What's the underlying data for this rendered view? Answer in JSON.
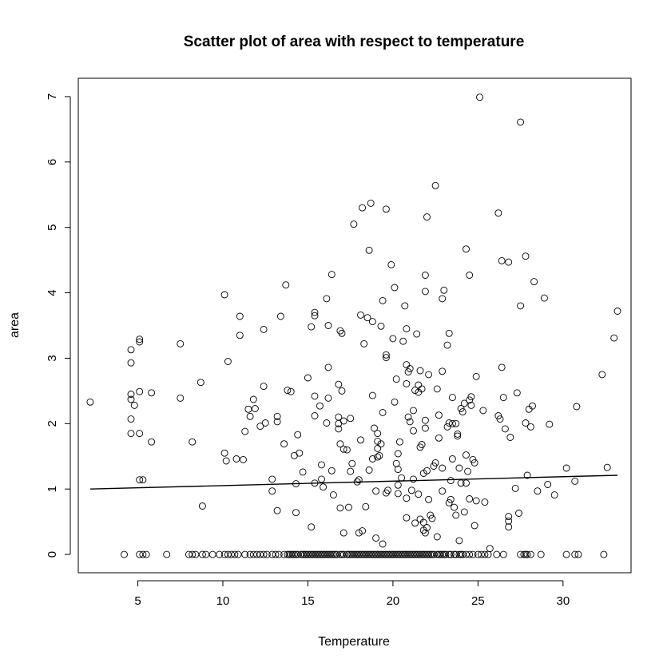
{
  "chart_data": {
    "type": "scatter",
    "title": "Scatter plot of area with respect to temperature",
    "xlabel": "Temperature",
    "ylabel": "area",
    "xlim": [
      1.5,
      34.0
    ],
    "ylim": [
      -0.28,
      7.28
    ],
    "xticks": [
      5,
      10,
      15,
      20,
      25,
      30
    ],
    "yticks": [
      0,
      1,
      2,
      3,
      4,
      5,
      6,
      7
    ],
    "grid": false,
    "colors": {
      "points": "#000000",
      "line": "#000000",
      "background": "#ffffff"
    },
    "points": [
      [
        2.2,
        2.33
      ],
      [
        4.6,
        3.13
      ],
      [
        4.6,
        2.93
      ],
      [
        4.6,
        2.45
      ],
      [
        4.6,
        2.37
      ],
      [
        4.6,
        2.07
      ],
      [
        4.6,
        1.85
      ],
      [
        4.8,
        2.28
      ],
      [
        5.1,
        3.29
      ],
      [
        5.1,
        3.25
      ],
      [
        5.1,
        2.49
      ],
      [
        5.1,
        1.85
      ],
      [
        5.1,
        1.14
      ],
      [
        5.3,
        1.14
      ],
      [
        5.8,
        2.47
      ],
      [
        5.8,
        1.72
      ],
      [
        7.5,
        3.22
      ],
      [
        7.5,
        2.39
      ],
      [
        8.2,
        1.72
      ],
      [
        8.7,
        2.63
      ],
      [
        8.8,
        0.74
      ],
      [
        10.1,
        3.97
      ],
      [
        10.1,
        1.55
      ],
      [
        10.2,
        1.43
      ],
      [
        10.3,
        2.95
      ],
      [
        10.8,
        1.46
      ],
      [
        11.0,
        3.64
      ],
      [
        11.0,
        3.35
      ],
      [
        11.2,
        1.45
      ],
      [
        11.3,
        1.88
      ],
      [
        11.5,
        2.22
      ],
      [
        11.6,
        2.11
      ],
      [
        11.8,
        2.37
      ],
      [
        11.9,
        2.23
      ],
      [
        12.2,
        1.96
      ],
      [
        12.4,
        3.44
      ],
      [
        12.4,
        2.57
      ],
      [
        12.5,
        2.01
      ],
      [
        12.9,
        1.15
      ],
      [
        12.9,
        0.97
      ],
      [
        13.2,
        2.11
      ],
      [
        13.2,
        2.03
      ],
      [
        13.2,
        0.67
      ],
      [
        13.4,
        3.64
      ],
      [
        13.6,
        1.69
      ],
      [
        13.7,
        4.12
      ],
      [
        13.8,
        2.51
      ],
      [
        14.0,
        2.49
      ],
      [
        14.2,
        1.51
      ],
      [
        14.3,
        1.08
      ],
      [
        14.3,
        0.64
      ],
      [
        14.4,
        1.83
      ],
      [
        14.5,
        1.55
      ],
      [
        14.7,
        1.26
      ],
      [
        15.0,
        2.7
      ],
      [
        15.2,
        3.48
      ],
      [
        15.2,
        0.42
      ],
      [
        15.4,
        3.7
      ],
      [
        15.4,
        3.65
      ],
      [
        15.4,
        2.42
      ],
      [
        15.4,
        2.12
      ],
      [
        15.4,
        1.09
      ],
      [
        15.7,
        2.27
      ],
      [
        15.8,
        1.37
      ],
      [
        15.8,
        1.15
      ],
      [
        15.9,
        1.03
      ],
      [
        16.1,
        3.91
      ],
      [
        16.1,
        2.01
      ],
      [
        16.2,
        3.5
      ],
      [
        16.2,
        2.86
      ],
      [
        16.2,
        2.39
      ],
      [
        16.4,
        4.28
      ],
      [
        16.4,
        1.28
      ],
      [
        16.5,
        0.91
      ],
      [
        16.8,
        2.6
      ],
      [
        16.8,
        2.1
      ],
      [
        16.8,
        2.0
      ],
      [
        16.8,
        1.92
      ],
      [
        16.9,
        3.42
      ],
      [
        16.9,
        1.69
      ],
      [
        16.9,
        0.71
      ],
      [
        17.0,
        3.38
      ],
      [
        17.0,
        2.5
      ],
      [
        17.1,
        2.04
      ],
      [
        17.1,
        1.61
      ],
      [
        17.1,
        0.33
      ],
      [
        17.3,
        1.6
      ],
      [
        17.4,
        0.72
      ],
      [
        17.5,
        2.08
      ],
      [
        17.5,
        1.27
      ],
      [
        17.6,
        1.39
      ],
      [
        17.7,
        5.05
      ],
      [
        17.9,
        1.11
      ],
      [
        18.0,
        1.14
      ],
      [
        18.0,
        0.33
      ],
      [
        18.1,
        3.66
      ],
      [
        18.1,
        1.75
      ],
      [
        18.2,
        5.3
      ],
      [
        18.2,
        0.36
      ],
      [
        18.3,
        3.22
      ],
      [
        18.4,
        0.73
      ],
      [
        18.5,
        3.62
      ],
      [
        18.6,
        4.65
      ],
      [
        18.6,
        1.29
      ],
      [
        18.7,
        5.37
      ],
      [
        18.8,
        3.56
      ],
      [
        18.8,
        2.43
      ],
      [
        18.8,
        1.46
      ],
      [
        18.9,
        1.93
      ],
      [
        19.0,
        0.97
      ],
      [
        19.0,
        0.25
      ],
      [
        19.1,
        1.85
      ],
      [
        19.1,
        1.73
      ],
      [
        19.1,
        1.62
      ],
      [
        19.1,
        1.49
      ],
      [
        19.2,
        1.51
      ],
      [
        19.3,
        3.49
      ],
      [
        19.3,
        1.69
      ],
      [
        19.4,
        3.88
      ],
      [
        19.4,
        2.17
      ],
      [
        19.4,
        0.16
      ],
      [
        19.6,
        5.28
      ],
      [
        19.6,
        3.05
      ],
      [
        19.6,
        3.01
      ],
      [
        19.6,
        0.94
      ],
      [
        19.7,
        0.98
      ],
      [
        19.9,
        4.43
      ],
      [
        20.0,
        3.3
      ],
      [
        20.1,
        4.08
      ],
      [
        20.1,
        2.33
      ],
      [
        20.2,
        2.68
      ],
      [
        20.2,
        1.39
      ],
      [
        20.3,
        1.54
      ],
      [
        20.3,
        1.3
      ],
      [
        20.3,
        1.06
      ],
      [
        20.3,
        0.93
      ],
      [
        20.4,
        1.72
      ],
      [
        20.5,
        1.17
      ],
      [
        20.6,
        3.26
      ],
      [
        20.7,
        3.8
      ],
      [
        20.8,
        3.45
      ],
      [
        20.8,
        2.9
      ],
      [
        20.8,
        2.61
      ],
      [
        20.8,
        0.86
      ],
      [
        20.8,
        0.56
      ],
      [
        20.9,
        2.79
      ],
      [
        20.9,
        2.1
      ],
      [
        21.0,
        2.84
      ],
      [
        21.0,
        2.03
      ],
      [
        21.1,
        0.98
      ],
      [
        21.2,
        2.2
      ],
      [
        21.2,
        1.89
      ],
      [
        21.2,
        1.15
      ],
      [
        21.3,
        2.51
      ],
      [
        21.3,
        0.48
      ],
      [
        21.4,
        3.37
      ],
      [
        21.5,
        2.59
      ],
      [
        21.5,
        2.48
      ],
      [
        21.5,
        0.92
      ],
      [
        21.6,
        2.81
      ],
      [
        21.6,
        1.64
      ],
      [
        21.6,
        0.54
      ],
      [
        21.7,
        2.53
      ],
      [
        21.7,
        1.68
      ],
      [
        21.8,
        1.24
      ],
      [
        21.8,
        0.49
      ],
      [
        21.8,
        0.37
      ],
      [
        21.9,
        4.27
      ],
      [
        21.9,
        4.02
      ],
      [
        21.9,
        2.05
      ],
      [
        21.9,
        1.93
      ],
      [
        21.9,
        0.33
      ],
      [
        22.0,
        5.16
      ],
      [
        22.0,
        1.28
      ],
      [
        22.0,
        0.41
      ],
      [
        22.1,
        2.75
      ],
      [
        22.1,
        0.84
      ],
      [
        22.2,
        0.6
      ],
      [
        22.3,
        0.55
      ],
      [
        22.4,
        1.35
      ],
      [
        22.5,
        5.64
      ],
      [
        22.5,
        1.4
      ],
      [
        22.6,
        2.53
      ],
      [
        22.6,
        0.27
      ],
      [
        22.7,
        2.13
      ],
      [
        22.7,
        1.78
      ],
      [
        22.9,
        3.91
      ],
      [
        22.9,
        2.8
      ],
      [
        22.9,
        1.32
      ],
      [
        22.9,
        0.97
      ],
      [
        23.0,
        4.04
      ],
      [
        23.2,
        3.2
      ],
      [
        23.2,
        1.95
      ],
      [
        23.3,
        3.38
      ],
      [
        23.3,
        2.01
      ],
      [
        23.3,
        0.79
      ],
      [
        23.4,
        1.13
      ],
      [
        23.4,
        0.84
      ],
      [
        23.5,
        2.4
      ],
      [
        23.5,
        2.0
      ],
      [
        23.5,
        1.46
      ],
      [
        23.6,
        0.72
      ],
      [
        23.7,
        2.0
      ],
      [
        23.7,
        0.6
      ],
      [
        23.8,
        1.84
      ],
      [
        23.8,
        1.81
      ],
      [
        23.9,
        1.32
      ],
      [
        23.9,
        0.21
      ],
      [
        24.0,
        2.23
      ],
      [
        24.0,
        1.09
      ],
      [
        24.1,
        2.18
      ],
      [
        24.2,
        2.31
      ],
      [
        24.2,
        0.65
      ],
      [
        24.3,
        4.67
      ],
      [
        24.3,
        1.52
      ],
      [
        24.3,
        1.09
      ],
      [
        24.4,
        1.27
      ],
      [
        24.5,
        4.27
      ],
      [
        24.5,
        2.36
      ],
      [
        24.5,
        0.85
      ],
      [
        24.6,
        2.41
      ],
      [
        24.6,
        2.28
      ],
      [
        24.7,
        1.45
      ],
      [
        24.8,
        1.4
      ],
      [
        24.8,
        0.44
      ],
      [
        24.9,
        2.72
      ],
      [
        24.9,
        0.82
      ],
      [
        25.1,
        6.99
      ],
      [
        25.3,
        2.2
      ],
      [
        25.4,
        0.8
      ],
      [
        25.7,
        0.09
      ],
      [
        26.2,
        5.22
      ],
      [
        26.2,
        2.12
      ],
      [
        26.3,
        2.07
      ],
      [
        26.4,
        4.49
      ],
      [
        26.4,
        2.86
      ],
      [
        26.5,
        2.4
      ],
      [
        26.6,
        1.92
      ],
      [
        26.8,
        0.58
      ],
      [
        26.8,
        0.51
      ],
      [
        26.8,
        0.42
      ],
      [
        26.8,
        4.47
      ],
      [
        26.9,
        1.79
      ],
      [
        27.2,
        1.01
      ],
      [
        27.3,
        2.47
      ],
      [
        27.4,
        0.63
      ],
      [
        27.5,
        6.61
      ],
      [
        27.5,
        3.8
      ],
      [
        27.8,
        4.56
      ],
      [
        27.8,
        2.01
      ],
      [
        27.9,
        1.21
      ],
      [
        28.0,
        2.22
      ],
      [
        28.1,
        1.95
      ],
      [
        28.2,
        2.27
      ],
      [
        28.3,
        4.17
      ],
      [
        28.5,
        0.97
      ],
      [
        28.9,
        3.92
      ],
      [
        29.1,
        1.07
      ],
      [
        29.2,
        1.99
      ],
      [
        29.5,
        0.91
      ],
      [
        30.2,
        1.32
      ],
      [
        30.7,
        1.12
      ],
      [
        30.8,
        2.26
      ],
      [
        32.3,
        2.75
      ],
      [
        32.6,
        1.33
      ],
      [
        33.0,
        3.31
      ],
      [
        33.2,
        3.72
      ]
    ],
    "zero_x": [
      4.2,
      5.1,
      5.3,
      5.5,
      6.7,
      8.0,
      8.2,
      8.4,
      8.8,
      9.0,
      9.4,
      9.8,
      10.1,
      10.3,
      10.5,
      10.7,
      10.9,
      11.3,
      11.6,
      11.8,
      12.0,
      12.2,
      12.4,
      12.6,
      12.9,
      13.1,
      13.3,
      13.6,
      13.8,
      13.9,
      14.0,
      14.1,
      14.2,
      14.3,
      14.4,
      14.6,
      14.7,
      14.8,
      14.9,
      15.0,
      15.1,
      15.2,
      15.3,
      15.4,
      15.5,
      15.6,
      15.7,
      15.8,
      15.9,
      16.0,
      16.1,
      16.2,
      16.3,
      16.4,
      16.5,
      16.6,
      16.7,
      16.9,
      17.0,
      17.1,
      17.3,
      17.4,
      17.5,
      17.6,
      17.7,
      17.8,
      17.9,
      18.0,
      18.1,
      18.2,
      18.3,
      18.4,
      18.5,
      18.6,
      18.7,
      18.8,
      18.9,
      19.0,
      19.1,
      19.2,
      19.3,
      19.4,
      19.5,
      19.6,
      19.7,
      19.8,
      19.9,
      20.0,
      20.1,
      20.2,
      20.3,
      20.4,
      20.5,
      20.6,
      20.7,
      20.8,
      20.9,
      21.0,
      21.1,
      21.2,
      21.3,
      21.4,
      21.5,
      21.6,
      21.7,
      21.8,
      21.9,
      22.0,
      22.1,
      22.2,
      22.3,
      22.4,
      22.6,
      22.7,
      22.8,
      22.9,
      23.0,
      23.1,
      23.3,
      23.4,
      23.6,
      23.7,
      23.9,
      24.0,
      24.1,
      24.3,
      24.5,
      24.7,
      25.0,
      25.2,
      25.4,
      25.6,
      26.1,
      26.5,
      27.5,
      27.7,
      27.8,
      27.9,
      28.1,
      28.7,
      30.2,
      30.7,
      30.9,
      32.4
    ],
    "trend_line": {
      "x": [
        2.2,
        33.2
      ],
      "y": [
        1.0,
        1.21
      ]
    }
  }
}
